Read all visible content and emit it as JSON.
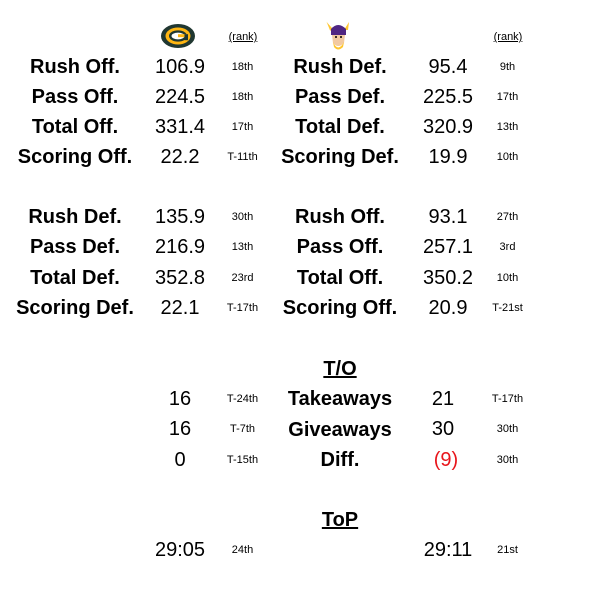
{
  "header": {
    "left_team_logo": "green-bay-packers-logo",
    "right_team_logo": "minnesota-vikings-logo",
    "left_rank_label": "(rank)",
    "right_rank_label": "(rank)"
  },
  "block1": {
    "rows": [
      {
        "left_label": "Rush Off.",
        "left_value": "106.9",
        "left_rank": "18th",
        "right_label": "Rush Def.",
        "right_value": "95.4",
        "right_rank": "9th"
      },
      {
        "left_label": "Pass Off.",
        "left_value": "224.5",
        "left_rank": "18th",
        "right_label": "Pass Def.",
        "right_value": "225.5",
        "right_rank": "17th"
      },
      {
        "left_label": "Total Off.",
        "left_value": "331.4",
        "left_rank": "17th",
        "right_label": "Total Def.",
        "right_value": "320.9",
        "right_rank": "13th"
      },
      {
        "left_label": "Scoring Off.",
        "left_value": "22.2",
        "left_rank": "T-11th",
        "right_label": "Scoring Def.",
        "right_value": "19.9",
        "right_rank": "10th"
      }
    ]
  },
  "block2": {
    "rows": [
      {
        "left_label": "Rush Def.",
        "left_value": "135.9",
        "left_rank": "30th",
        "right_label": "Rush Off.",
        "right_value": "93.1",
        "right_rank": "27th"
      },
      {
        "left_label": "Pass Def.",
        "left_value": "216.9",
        "left_rank": "13th",
        "right_label": "Pass Off.",
        "right_value": "257.1",
        "right_rank": "3rd"
      },
      {
        "left_label": "Total Def.",
        "left_value": "352.8",
        "left_rank": "23rd",
        "right_label": "Total Off.",
        "right_value": "350.2",
        "right_rank": "10th"
      },
      {
        "left_label": "Scoring Def.",
        "left_value": "22.1",
        "left_rank": "T-17th",
        "right_label": "Scoring Off.",
        "right_value": "20.9",
        "right_rank": "T-21st"
      }
    ]
  },
  "turnovers": {
    "heading": "T/O",
    "rows": [
      {
        "left_value": "16",
        "left_rank": "T-24th",
        "label": "Takeaways",
        "right_value": "21",
        "right_rank": "T-17th"
      },
      {
        "left_value": "16",
        "left_rank": "T-7th",
        "label": "Giveaways",
        "right_value": "30",
        "right_rank": "30th"
      },
      {
        "left_value": "0",
        "left_rank": "T-15th",
        "label": "Diff.",
        "right_value": "(9)",
        "right_rank": "30th"
      }
    ],
    "negative_color": "#e8151b"
  },
  "top": {
    "heading": "ToP",
    "left_value": "29:05",
    "left_rank": "24th",
    "right_value": "29:11",
    "right_rank": "21st"
  }
}
